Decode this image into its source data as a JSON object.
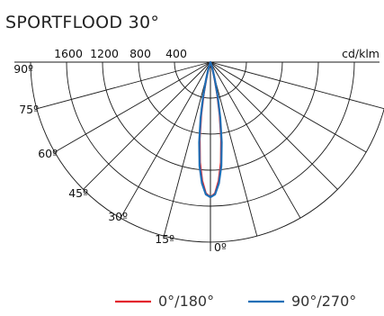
{
  "title": "SPORTFLOOD 30°",
  "unit_label": "cd/klm",
  "colors": {
    "red": "#e3262d",
    "blue": "#1f6fb6",
    "grid": "#1a1a1a"
  },
  "chart_data": {
    "type": "polar",
    "title": "SPORTFLOOD 30°",
    "radial_unit": "cd/klm",
    "radial_ticks": [
      {
        "value": 400,
        "label": "400"
      },
      {
        "value": 800,
        "label": "800"
      },
      {
        "value": 1200,
        "label": "1200"
      },
      {
        "value": 1600,
        "label": "1600"
      }
    ],
    "radial_max": 2000,
    "angle_ticks": [
      {
        "deg": 0,
        "label": "0º"
      },
      {
        "deg": 15,
        "label": "15º"
      },
      {
        "deg": 30,
        "label": "30º"
      },
      {
        "deg": 45,
        "label": "45º"
      },
      {
        "deg": 60,
        "label": "60º"
      },
      {
        "deg": 75,
        "label": "75º"
      },
      {
        "deg": 90,
        "label": "90º"
      }
    ],
    "series": [
      {
        "name": "0°/180°",
        "color": "#e3262d",
        "angles": [
          0,
          2,
          4,
          6,
          8,
          10,
          12,
          14,
          16,
          18,
          20,
          22,
          25,
          30
        ],
        "values": [
          1500,
          1460,
          1320,
          1120,
          860,
          590,
          360,
          190,
          90,
          40,
          15,
          6,
          2,
          0
        ]
      },
      {
        "name": "90°/270°",
        "color": "#1f6fb6",
        "angles": [
          0,
          2,
          4,
          6,
          8,
          10,
          12,
          14,
          16,
          18,
          20,
          22,
          25,
          30
        ],
        "values": [
          1500,
          1470,
          1350,
          1160,
          900,
          630,
          390,
          210,
          100,
          45,
          18,
          7,
          2,
          0
        ]
      }
    ]
  }
}
